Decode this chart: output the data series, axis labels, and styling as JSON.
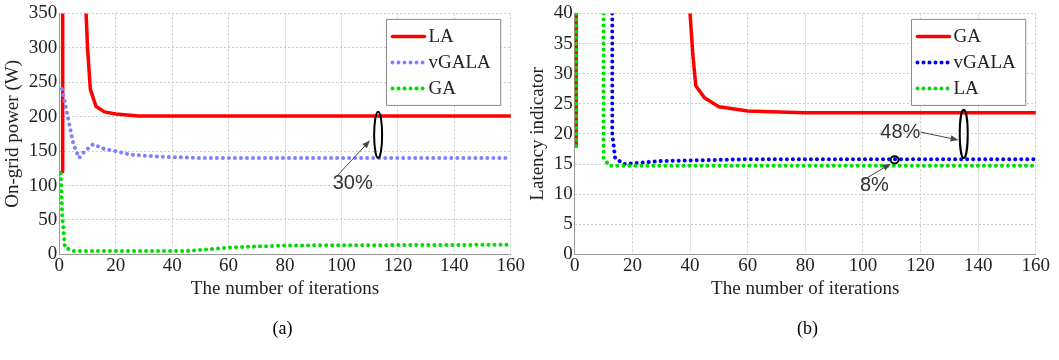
{
  "chart_data": [
    {
      "type": "line",
      "xlabel": "The number of iterations",
      "ylabel": "On-grid power (W)",
      "xlim": [
        0,
        160
      ],
      "xticks": [
        0,
        20,
        40,
        60,
        80,
        100,
        120,
        140,
        160
      ],
      "ylim": [
        0,
        350
      ],
      "yticks": [
        0,
        50,
        100,
        150,
        200,
        250,
        300,
        350
      ],
      "grid": true,
      "legend": "top right",
      "annotations": [
        "30%",
        "(a)"
      ],
      "series": [
        {
          "name": "LA",
          "color": "#ff0000",
          "line_style": "solid",
          "x": [
            1,
            1.2,
            5,
            9.5,
            10,
            11,
            13,
            16,
            20,
            28,
            160
          ],
          "values": [
            120,
            350,
            null,
            350,
            300,
            240,
            215,
            207,
            204,
            201,
            201
          ]
        },
        {
          "name": "vGALA",
          "color": "#8080ff",
          "line_style": "dotted",
          "x": [
            1,
            3,
            5,
            7,
            9,
            12,
            16,
            20,
            25,
            35,
            50,
            160
          ],
          "values": [
            240,
            200,
            160,
            140,
            150,
            160,
            153,
            150,
            145,
            142,
            140,
            140
          ]
        },
        {
          "name": "GA",
          "color": "#00dd00",
          "line_style": "dotted",
          "x": [
            0.5,
            1,
            2,
            5,
            45,
            55,
            60,
            80,
            160
          ],
          "values": [
            118,
            60,
            10,
            5,
            5,
            8,
            10,
            13,
            14
          ]
        }
      ]
    },
    {
      "type": "line",
      "xlabel": "The number of iterations",
      "ylabel": "Latency indicator",
      "xlim": [
        0,
        160
      ],
      "xticks": [
        0,
        20,
        40,
        60,
        80,
        100,
        120,
        140,
        160
      ],
      "ylim": [
        0,
        40
      ],
      "yticks": [
        0,
        5,
        10,
        15,
        20,
        25,
        30,
        35,
        40
      ],
      "grid": true,
      "legend": "top right",
      "annotations": [
        "48%",
        "8%",
        "(b)"
      ],
      "series": [
        {
          "name": "GA",
          "color": "#ff0000",
          "line_style": "solid",
          "x": [
            0.5,
            0.5,
            20,
            40,
            41,
            42,
            45,
            50,
            60,
            80,
            160
          ],
          "values": [
            18,
            40,
            null,
            40,
            33,
            28,
            26,
            24.5,
            23.8,
            23.5,
            23.5
          ]
        },
        {
          "name": "vGALA",
          "color": "#0000ff",
          "line_style": "dotted",
          "x": [
            13,
            13,
            14,
            17,
            30,
            60,
            160
          ],
          "values": [
            40,
            20,
            16,
            15,
            15.5,
            15.8,
            15.8
          ]
        },
        {
          "name": "LA",
          "color": "#00dd00",
          "line_style": "dotted",
          "x": [
            0.5,
            0.5,
            5,
            10,
            10,
            12,
            160
          ],
          "values": [
            18,
            40,
            null,
            40,
            16,
            14.7,
            14.7
          ]
        }
      ]
    }
  ]
}
